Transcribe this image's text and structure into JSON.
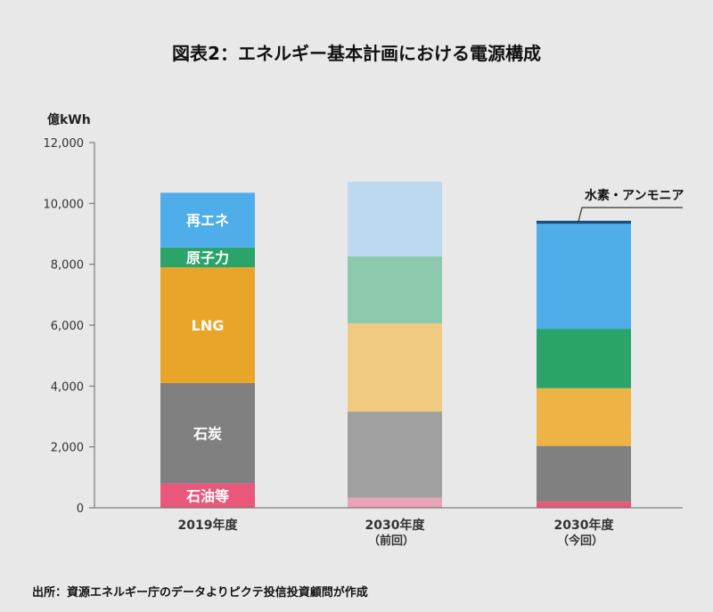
{
  "chart_data": {
    "type": "bar",
    "stacked": true,
    "title": "図表2：エネルギー基本計画における電源構成",
    "ylabel": "億kWh",
    "ylim": [
      0,
      12000
    ],
    "yticks": [
      "0",
      "2,000",
      "4,000",
      "6,000",
      "8,000",
      "10,000",
      "12,000"
    ],
    "ytick_values": [
      0,
      2000,
      4000,
      6000,
      8000,
      10000,
      12000
    ],
    "categories": [
      "2019年度",
      "2030年度",
      "2030年度"
    ],
    "category_sublabels": [
      "",
      "（前回）",
      "（今回）"
    ],
    "series": [
      {
        "name": "石油等",
        "values": [
          800,
          330,
          200
        ],
        "colors": [
          "#e9587a",
          "#e9a3b6",
          "#e9587a"
        ]
      },
      {
        "name": "石炭",
        "values": [
          3300,
          2830,
          1830
        ],
        "colors": [
          "#808080",
          "#a0a0a0",
          "#808080"
        ]
      },
      {
        "name": "LNG",
        "values": [
          3800,
          2900,
          1900
        ],
        "colors": [
          "#e9a52a",
          "#f1ca82",
          "#edb445"
        ]
      },
      {
        "name": "原子力",
        "values": [
          650,
          2200,
          1950
        ],
        "colors": [
          "#2aa468",
          "#8cc9ad",
          "#2aa468"
        ]
      },
      {
        "name": "再エネ",
        "values": [
          1800,
          2450,
          3450
        ],
        "colors": [
          "#4fadea",
          "#bdd9ef",
          "#4fadea"
        ]
      },
      {
        "name": "水素・アンモニア",
        "values": [
          0,
          0,
          100
        ],
        "colors": [
          "#1a4f86",
          "#1a4f86",
          "#1a4f86"
        ]
      }
    ],
    "bar_labels": {
      "bar": 0,
      "labels": [
        "石油等",
        "石炭",
        "LNG",
        "原子力",
        "再エネ"
      ]
    },
    "annotation": "水素・アンモニア",
    "grid": false,
    "source": "出所：資源エネルギー庁のデータよりピクテ投信投資顧問が作成"
  }
}
